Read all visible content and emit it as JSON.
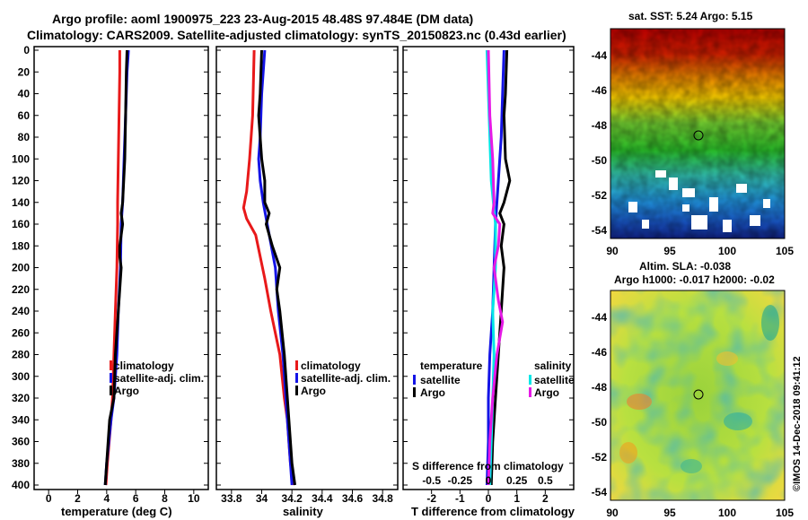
{
  "header": {
    "title_line1": "Argo profile: aoml 1900975_223 23-Aug-2015 48.48S 97.484E (DM data)",
    "title_line2": "Climatology: CARS2009. Satellite-adjusted climatology: synTS_20150823.nc (0.43d earlier)"
  },
  "depth_ticks": [
    0,
    20,
    40,
    60,
    80,
    100,
    120,
    140,
    160,
    180,
    200,
    220,
    240,
    260,
    280,
    300,
    320,
    340,
    360,
    380,
    400
  ],
  "colors": {
    "climatology": "#e8191a",
    "satellite": "#1414e6",
    "argo": "#000000",
    "sal_satellite": "#00e6e6",
    "sal_argo": "#e619e6"
  },
  "chart_data": [
    {
      "id": "temperature",
      "type": "line",
      "xlabel": "temperature (deg C)",
      "xlim": [
        -1,
        11
      ],
      "ylim": [
        0,
        400
      ],
      "xticks": [
        "0",
        "2",
        "4",
        "6",
        "8",
        "10"
      ],
      "xtick_values": [
        0,
        2,
        4,
        6,
        8,
        10
      ],
      "legend": [
        "climatology",
        "satellite-adj. clim.",
        "Argo"
      ],
      "series": [
        {
          "name": "climatology",
          "color": "#e8191a",
          "points": [
            [
              4.9,
              0
            ],
            [
              4.9,
              20
            ],
            [
              4.85,
              60
            ],
            [
              4.8,
              100
            ],
            [
              4.75,
              140
            ],
            [
              4.75,
              160
            ],
            [
              4.7,
              200
            ],
            [
              4.6,
              240
            ],
            [
              4.5,
              280
            ],
            [
              4.4,
              320
            ],
            [
              4.3,
              340
            ],
            [
              4.05,
              380
            ],
            [
              3.95,
              400
            ]
          ]
        },
        {
          "name": "satellite-adj. clim.",
          "color": "#1414e6",
          "points": [
            [
              5.5,
              0
            ],
            [
              5.4,
              20
            ],
            [
              5.3,
              60
            ],
            [
              5.2,
              100
            ],
            [
              5.1,
              140
            ],
            [
              5.0,
              160
            ],
            [
              4.95,
              200
            ],
            [
              4.8,
              240
            ],
            [
              4.7,
              280
            ],
            [
              4.5,
              320
            ],
            [
              4.3,
              340
            ],
            [
              4.0,
              380
            ],
            [
              3.9,
              400
            ]
          ]
        },
        {
          "name": "Argo",
          "color": "#000000",
          "points": [
            [
              5.4,
              0
            ],
            [
              5.35,
              20
            ],
            [
              5.3,
              60
            ],
            [
              5.25,
              100
            ],
            [
              5.1,
              140
            ],
            [
              5.0,
              150
            ],
            [
              5.1,
              160
            ],
            [
              4.9,
              180
            ],
            [
              4.9,
              190
            ],
            [
              5.0,
              200
            ],
            [
              4.8,
              240
            ],
            [
              4.6,
              280
            ],
            [
              4.5,
              320
            ],
            [
              4.2,
              340
            ],
            [
              4.0,
              380
            ],
            [
              3.9,
              400
            ]
          ]
        }
      ]
    },
    {
      "id": "salinity",
      "type": "line",
      "xlabel": "salinity",
      "xlim": [
        33.7,
        34.9
      ],
      "ylim": [
        0,
        400
      ],
      "xticks": [
        "33.8",
        "34",
        "34.2",
        "34.4",
        "34.6",
        "34.8"
      ],
      "xtick_values": [
        33.8,
        34.0,
        34.2,
        34.4,
        34.6,
        34.8
      ],
      "legend": [
        "climatology",
        "satellite-adj. clim.",
        "Argo"
      ],
      "series": [
        {
          "name": "climatology",
          "color": "#e8191a",
          "points": [
            [
              33.95,
              0
            ],
            [
              33.94,
              60
            ],
            [
              33.92,
              100
            ],
            [
              33.9,
              130
            ],
            [
              33.88,
              145
            ],
            [
              33.9,
              155
            ],
            [
              33.96,
              170
            ],
            [
              34.02,
              210
            ],
            [
              34.06,
              240
            ],
            [
              34.12,
              280
            ],
            [
              34.15,
              320
            ],
            [
              34.17,
              340
            ],
            [
              34.19,
              380
            ],
            [
              34.21,
              400
            ]
          ]
        },
        {
          "name": "satellite-adj. clim.",
          "color": "#1414e6",
          "points": [
            [
              34.02,
              0
            ],
            [
              34.0,
              40
            ],
            [
              33.99,
              80
            ],
            [
              33.98,
              100
            ],
            [
              33.99,
              120
            ],
            [
              34.01,
              140
            ],
            [
              34.05,
              170
            ],
            [
              34.09,
              200
            ],
            [
              34.11,
              240
            ],
            [
              34.14,
              280
            ],
            [
              34.16,
              320
            ],
            [
              34.17,
              340
            ],
            [
              34.19,
              380
            ],
            [
              34.2,
              400
            ]
          ]
        },
        {
          "name": "Argo",
          "color": "#000000",
          "points": [
            [
              34.0,
              0
            ],
            [
              33.99,
              40
            ],
            [
              33.98,
              60
            ],
            [
              34.0,
              100
            ],
            [
              34.02,
              120
            ],
            [
              34.02,
              140
            ],
            [
              34.05,
              150
            ],
            [
              34.03,
              160
            ],
            [
              34.07,
              180
            ],
            [
              34.12,
              200
            ],
            [
              34.1,
              220
            ],
            [
              34.12,
              240
            ],
            [
              34.15,
              280
            ],
            [
              34.17,
              320
            ],
            [
              34.18,
              340
            ],
            [
              34.2,
              380
            ],
            [
              34.22,
              400
            ]
          ]
        }
      ]
    },
    {
      "id": "difference",
      "type": "line",
      "xlabel": "T difference from climatology",
      "xlabel2": "S difference from climatology",
      "xlim": [
        -3,
        3
      ],
      "ylim": [
        0,
        400
      ],
      "xticks": [
        "-2",
        "-1",
        "0",
        "1",
        "2"
      ],
      "xtick_values": [
        -2,
        -1,
        0,
        1,
        2
      ],
      "s_xticks": [
        "-0.5",
        "-0.25",
        "0",
        "0.25",
        "0.5"
      ],
      "s_xtick_values": [
        -2,
        -1,
        0,
        1,
        2
      ],
      "legend_temperature": {
        "title": "temperature",
        "items": [
          "satellite",
          "Argo"
        ]
      },
      "legend_salinity": {
        "title": "salinity",
        "items": [
          "satellite",
          "Argo"
        ]
      },
      "series": [
        {
          "name": "T satellite",
          "color": "#1414e6",
          "points": [
            [
              0.55,
              0
            ],
            [
              0.5,
              40
            ],
            [
              0.45,
              80
            ],
            [
              0.35,
              120
            ],
            [
              0.25,
              160
            ],
            [
              0.2,
              200
            ],
            [
              0.15,
              240
            ],
            [
              0.05,
              280
            ],
            [
              0.0,
              320
            ],
            [
              0.0,
              360
            ],
            [
              -0.05,
              400
            ]
          ]
        },
        {
          "name": "T Argo",
          "color": "#000000",
          "points": [
            [
              0.65,
              0
            ],
            [
              0.6,
              40
            ],
            [
              0.55,
              60
            ],
            [
              0.6,
              100
            ],
            [
              0.75,
              120
            ],
            [
              0.55,
              140
            ],
            [
              0.4,
              150
            ],
            [
              0.55,
              160
            ],
            [
              0.45,
              180
            ],
            [
              0.55,
              200
            ],
            [
              0.45,
              240
            ],
            [
              0.35,
              280
            ],
            [
              0.25,
              320
            ],
            [
              0.15,
              360
            ],
            [
              0.1,
              400
            ]
          ]
        },
        {
          "name": "S satellite",
          "color": "#00e6e6",
          "points": [
            [
              -0.05,
              0
            ],
            [
              0.0,
              40
            ],
            [
              0.05,
              80
            ],
            [
              0.1,
              120
            ],
            [
              0.25,
              160
            ],
            [
              0.25,
              200
            ],
            [
              0.15,
              240
            ],
            [
              0.2,
              280
            ],
            [
              0.15,
              320
            ],
            [
              0.1,
              360
            ],
            [
              0.05,
              400
            ]
          ]
        },
        {
          "name": "S Argo",
          "color": "#e619e6",
          "points": [
            [
              0.0,
              0
            ],
            [
              0.05,
              60
            ],
            [
              0.15,
              100
            ],
            [
              0.2,
              140
            ],
            [
              0.15,
              150
            ],
            [
              0.4,
              160
            ],
            [
              0.35,
              180
            ],
            [
              0.2,
              200
            ],
            [
              0.35,
              230
            ],
            [
              0.5,
              250
            ],
            [
              0.3,
              280
            ],
            [
              0.15,
              320
            ],
            [
              0.05,
              360
            ],
            [
              0.0,
              400
            ]
          ]
        }
      ]
    }
  ],
  "maps": {
    "sst": {
      "title": "sat. SST: 5.24 Argo: 5.15",
      "yticks": [
        "-44",
        "-46",
        "-48",
        "-50",
        "-52",
        "-54"
      ],
      "xticks": [
        "90",
        "95",
        "100",
        "105"
      ]
    },
    "sla": {
      "title_line1": "Altim. SLA: -0.038",
      "title_line2": "Argo h1000: -0.017 h2000: -0.02",
      "yticks": [
        "-44",
        "-46",
        "-48",
        "-50",
        "-52",
        "-54"
      ],
      "xticks": [
        "90",
        "95",
        "100",
        "105"
      ],
      "vertical_credit": "©IMOS 14-Dec-2018 09:41:12"
    }
  }
}
